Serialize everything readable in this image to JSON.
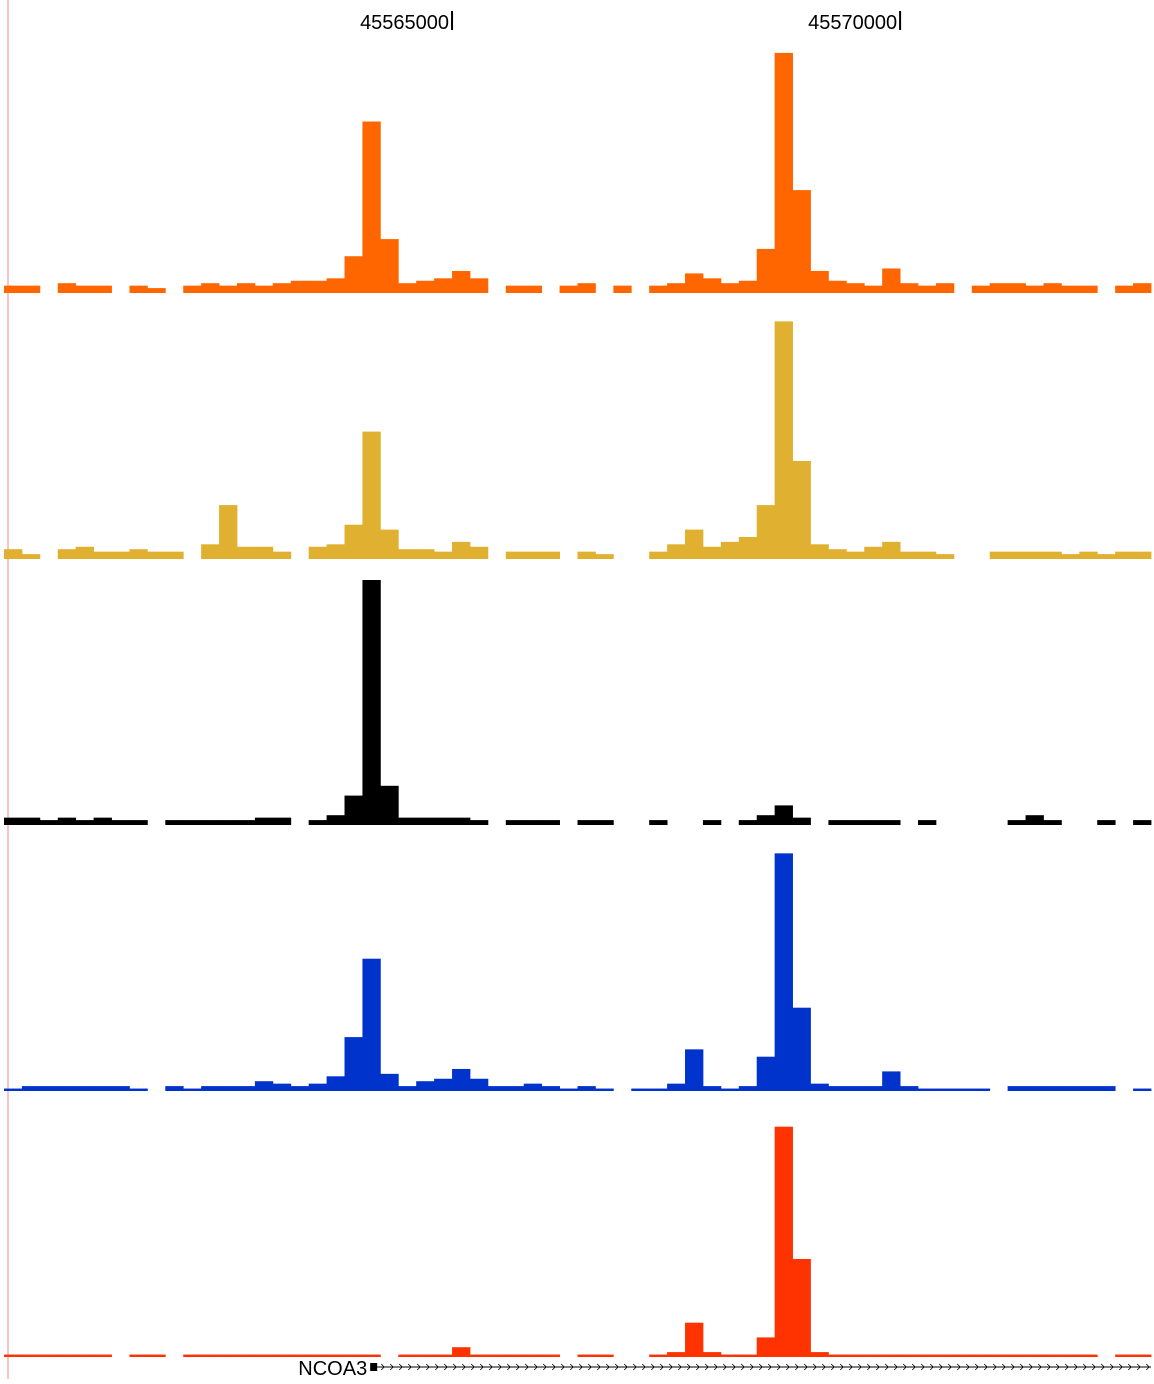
{
  "chart_data": {
    "type": "histogram",
    "bins": [
      45560000,
      45560200,
      45560400,
      45560600,
      45560800,
      45561000,
      45561200,
      45561400,
      45561600,
      45561800,
      45562000,
      45562200,
      45562400,
      45562600,
      45562800,
      45563000,
      45563200,
      45563400,
      45563600,
      45563800,
      45564000,
      45564200,
      45564400,
      45564600,
      45564800,
      45565000,
      45565200,
      45565400,
      45565600,
      45565800,
      45566000,
      45566200,
      45566400,
      45566600,
      45566800,
      45567000,
      45567200,
      45567400,
      45567600,
      45567800,
      45568000,
      45568200,
      45568400,
      45568600,
      45568800,
      45569000,
      45569200,
      45569400,
      45569600,
      45569800,
      45570000,
      45570200,
      45570400,
      45570600,
      45570800,
      45571000,
      45571200,
      45571400,
      45571600,
      45571800,
      45572000,
      45572200,
      45572400,
      45572600,
      45572800
    ],
    "xlim": [
      45560000,
      45572800
    ],
    "xticks": [
      45565000,
      45570000
    ],
    "ylim": [
      0,
      100
    ],
    "series": [
      {
        "color": "#ff6600",
        "values": [
          3,
          3,
          null,
          4,
          3,
          3,
          null,
          3,
          2,
          null,
          3,
          4,
          3,
          4,
          3,
          4,
          5,
          5,
          6,
          15,
          70,
          22,
          4,
          5,
          6,
          9,
          6,
          null,
          3,
          3,
          null,
          3,
          4,
          null,
          3,
          null,
          3,
          4,
          8,
          6,
          4,
          5,
          18,
          98,
          42,
          9,
          5,
          4,
          3,
          10,
          4,
          3,
          4,
          null,
          3,
          4,
          4,
          3,
          4,
          3,
          3,
          null,
          3,
          4
        ]
      },
      {
        "color": "#e0b030",
        "values": [
          4,
          2,
          null,
          4,
          5,
          3,
          3,
          4,
          3,
          3,
          null,
          6,
          22,
          5,
          5,
          3,
          null,
          5,
          6,
          14,
          52,
          12,
          4,
          4,
          3,
          7,
          5,
          null,
          3,
          3,
          3,
          null,
          3,
          2,
          null,
          null,
          3,
          6,
          12,
          5,
          7,
          9,
          22,
          97,
          40,
          6,
          4,
          3,
          5,
          7,
          3,
          3,
          2,
          null,
          null,
          3,
          3,
          3,
          3,
          2,
          3,
          2,
          3,
          3
        ]
      },
      {
        "color": "#000000",
        "values": [
          3,
          3,
          2,
          3,
          2,
          3,
          2,
          2,
          null,
          2,
          2,
          2,
          2,
          2,
          3,
          3,
          null,
          2,
          4,
          12,
          100,
          16,
          3,
          3,
          3,
          3,
          2,
          null,
          2,
          2,
          2,
          null,
          2,
          2,
          null,
          null,
          2,
          null,
          null,
          2,
          null,
          2,
          4,
          8,
          3,
          null,
          2,
          2,
          2,
          2,
          null,
          2,
          null,
          null,
          null,
          null,
          2,
          4,
          2,
          null,
          null,
          2,
          null,
          2
        ]
      },
      {
        "color": "#0033cc",
        "values": [
          1,
          2,
          2,
          2,
          2,
          2,
          2,
          1,
          null,
          2,
          1,
          2,
          2,
          2,
          4,
          3,
          2,
          3,
          6,
          22,
          54,
          7,
          2,
          4,
          5,
          9,
          5,
          2,
          2,
          3,
          2,
          1,
          2,
          1,
          null,
          1,
          1,
          3,
          17,
          2,
          1,
          2,
          14,
          97,
          34,
          3,
          2,
          2,
          2,
          8,
          2,
          1,
          1,
          1,
          1,
          null,
          2,
          2,
          2,
          2,
          2,
          2,
          null,
          1
        ]
      },
      {
        "color": "#ff3300",
        "values": [
          1,
          1,
          1,
          1,
          1,
          1,
          null,
          1,
          1,
          null,
          1,
          1,
          1,
          1,
          1,
          1,
          1,
          1,
          1,
          1,
          1,
          null,
          1,
          1,
          1,
          4,
          1,
          1,
          1,
          1,
          1,
          null,
          1,
          1,
          null,
          null,
          1,
          2,
          14,
          2,
          1,
          1,
          8,
          94,
          40,
          2,
          1,
          1,
          1,
          1,
          1,
          1,
          1,
          1,
          1,
          1,
          1,
          1,
          1,
          1,
          1,
          null,
          1,
          1
        ]
      }
    ],
    "gene": {
      "label": "NCOA3",
      "start": 45564120,
      "end": 45572800
    }
  }
}
